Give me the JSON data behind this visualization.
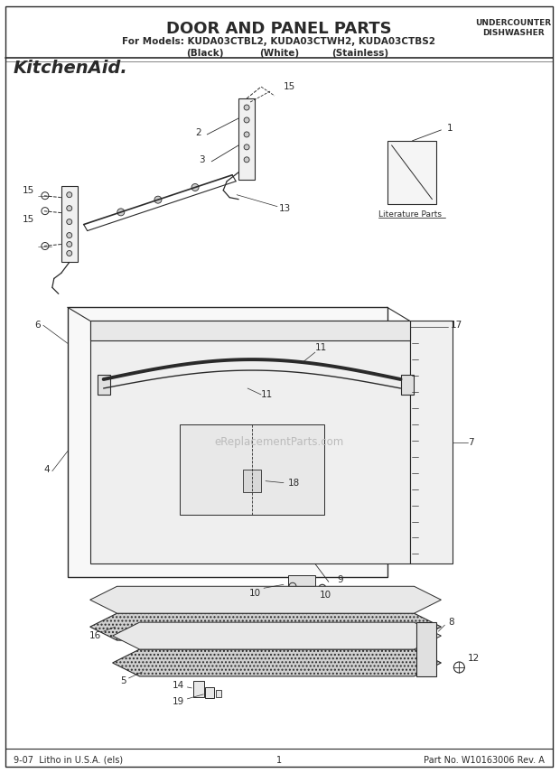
{
  "title": "DOOR AND PANEL PARTS",
  "subtitle_line1": "For Models: KUDA03CTBL2, KUDA03CTWH2, KUDA03CTBS2",
  "subtitle_line2a": "(Black)",
  "subtitle_line2b": "(White)",
  "subtitle_line2c": "(Stainless)",
  "top_right_line1": "UNDERCOUNTER",
  "top_right_line2": "DISHWASHER",
  "brand": "KitchenAid.",
  "footer_left": "9-07  Litho in U.S.A. (els)",
  "footer_center": "1",
  "footer_right": "Part No. W10163006 Rev. A",
  "watermark": "eReplacementParts.com",
  "literature_parts_label": "Literature Parts",
  "bg_color": "#ffffff",
  "line_color": "#2a2a2a"
}
